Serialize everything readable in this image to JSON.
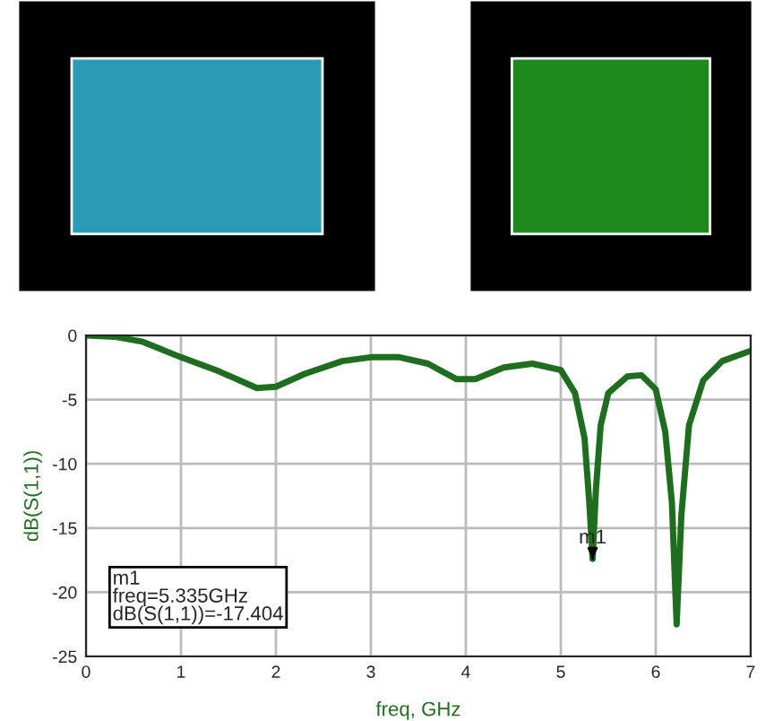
{
  "chart_data": {
    "type": "line",
    "xlabel": "freq, GHz",
    "ylabel": "dB(S(1,1))",
    "x": [
      0,
      0.3,
      0.6,
      1.0,
      1.4,
      1.8,
      2.0,
      2.3,
      2.7,
      3.0,
      3.3,
      3.6,
      3.9,
      4.1,
      4.4,
      4.7,
      5.0,
      5.15,
      5.25,
      5.3,
      5.335,
      5.37,
      5.42,
      5.5,
      5.7,
      5.85,
      6.0,
      6.1,
      6.17,
      6.22,
      6.27,
      6.35,
      6.5,
      6.7,
      7.0
    ],
    "series": [
      {
        "color": "#1f6e1f",
        "values": [
          0,
          -0.1,
          -0.5,
          -1.7,
          -2.8,
          -4.1,
          -4.0,
          -3.0,
          -2.0,
          -1.7,
          -1.7,
          -2.2,
          -3.4,
          -3.4,
          -2.5,
          -2.2,
          -2.7,
          -4.5,
          -8,
          -13,
          -17.4,
          -12,
          -7,
          -4.5,
          -3.2,
          -3.1,
          -4.2,
          -7.5,
          -13,
          -22.5,
          -14,
          -7,
          -3.5,
          -2,
          -1.2
        ]
      }
    ],
    "xlim": [
      0,
      7
    ],
    "xticks": [
      0,
      1,
      2,
      3,
      4,
      5,
      6,
      7
    ],
    "ylim": [
      -25,
      0
    ],
    "yticks": [
      -25,
      -20,
      -15,
      -10,
      -5,
      0
    ],
    "grid": true,
    "legend": false,
    "marker": "none",
    "line_style": "solid",
    "annotations": [
      {
        "text": "m1",
        "x": 5.335,
        "y": -17.404
      },
      "m1\nfreq=5.335GHz\ndB(S(1,1))=-17.404"
    ]
  }
}
